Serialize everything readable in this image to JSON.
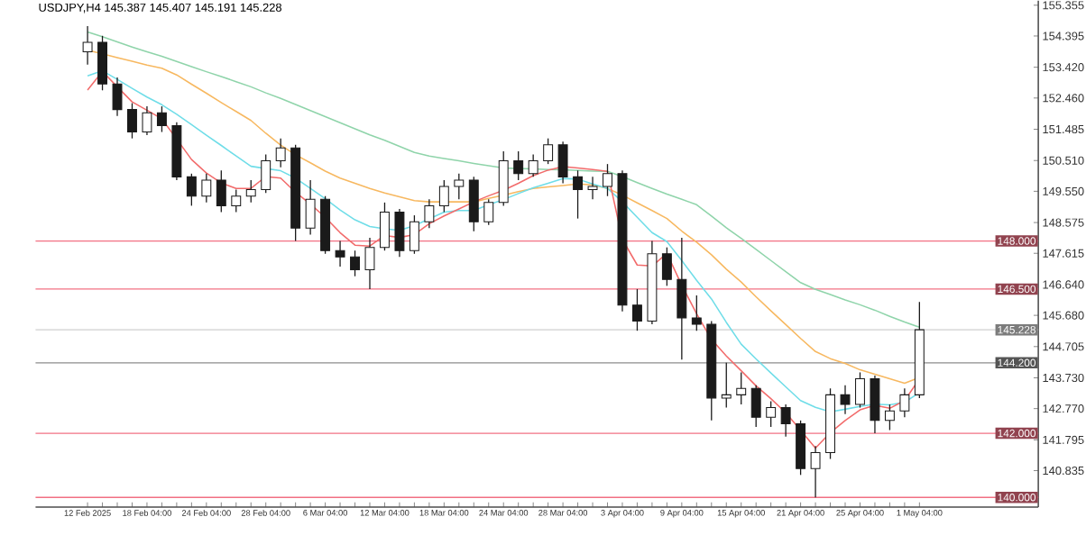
{
  "chart_data": {
    "type": "candlestick",
    "title": "USDJPY,H4 145.387 145.407 145.191 145.228",
    "color": "#1a1a1a",
    "categories": [
      "12 Feb 2025",
      null,
      null,
      null,
      "18 Feb 04:00",
      null,
      null,
      null,
      "24 Feb 04:00",
      null,
      null,
      null,
      "28 Feb 04:00",
      null,
      null,
      null,
      "6 Mar 04:00",
      null,
      null,
      null,
      "12 Mar 04:00",
      null,
      null,
      null,
      "18 Mar 04:00",
      null,
      null,
      null,
      "24 Mar 04:00",
      null,
      null,
      null,
      "28 Mar 04:00",
      null,
      null,
      null,
      "3 Apr 04:00",
      null,
      null,
      null,
      "9 Apr 04:00",
      null,
      null,
      null,
      "15 Apr 04:00",
      null,
      null,
      null,
      "21 Apr 04:00",
      null,
      null,
      null,
      "25 Apr 04:00",
      null,
      null,
      null,
      "1 May 04:00"
    ],
    "ohlc": [
      [
        153.9,
        154.7,
        153.5,
        154.2
      ],
      [
        154.2,
        154.4,
        152.7,
        152.9
      ],
      [
        152.9,
        153.1,
        151.9,
        152.1
      ],
      [
        152.1,
        152.3,
        151.2,
        151.4
      ],
      [
        151.4,
        152.2,
        151.3,
        152.0
      ],
      [
        152.0,
        152.2,
        151.4,
        151.6
      ],
      [
        151.6,
        151.7,
        149.9,
        150.0
      ],
      [
        150.0,
        150.1,
        149.1,
        149.4
      ],
      [
        149.4,
        150.1,
        149.2,
        149.9
      ],
      [
        149.9,
        150.2,
        148.9,
        149.1
      ],
      [
        149.1,
        149.6,
        148.9,
        149.4
      ],
      [
        149.4,
        149.9,
        149.2,
        149.6
      ],
      [
        149.6,
        150.7,
        149.5,
        150.5
      ],
      [
        150.5,
        151.2,
        150.3,
        150.9
      ],
      [
        150.9,
        151.0,
        148.0,
        148.4
      ],
      [
        148.4,
        149.9,
        148.2,
        149.3
      ],
      [
        149.3,
        149.4,
        147.6,
        147.7
      ],
      [
        147.7,
        148.0,
        147.2,
        147.5
      ],
      [
        147.5,
        147.7,
        146.9,
        147.1
      ],
      [
        147.1,
        148.1,
        146.5,
        147.8
      ],
      [
        147.8,
        149.2,
        147.7,
        148.9
      ],
      [
        148.9,
        149.0,
        147.5,
        147.7
      ],
      [
        147.7,
        148.8,
        147.6,
        148.6
      ],
      [
        148.6,
        149.3,
        148.4,
        149.1
      ],
      [
        149.1,
        149.9,
        148.9,
        149.7
      ],
      [
        149.7,
        150.1,
        149.3,
        149.9
      ],
      [
        149.9,
        150.0,
        148.3,
        148.6
      ],
      [
        148.6,
        149.3,
        148.5,
        149.2
      ],
      [
        149.2,
        150.8,
        149.1,
        150.5
      ],
      [
        150.5,
        150.8,
        149.9,
        150.1
      ],
      [
        150.1,
        150.7,
        150.0,
        150.5
      ],
      [
        150.5,
        151.2,
        150.4,
        151.0
      ],
      [
        151.0,
        151.1,
        149.8,
        150.0
      ],
      [
        150.0,
        150.2,
        148.7,
        149.6
      ],
      [
        149.6,
        150.0,
        149.3,
        149.7
      ],
      [
        149.7,
        150.4,
        149.4,
        150.1
      ],
      [
        150.1,
        150.2,
        145.8,
        146.0
      ],
      [
        146.0,
        146.5,
        145.2,
        145.5
      ],
      [
        145.5,
        148.0,
        145.4,
        147.6
      ],
      [
        147.6,
        147.8,
        146.6,
        146.8
      ],
      [
        146.8,
        148.1,
        144.3,
        145.6
      ],
      [
        145.6,
        146.3,
        145.2,
        145.4
      ],
      [
        145.4,
        145.5,
        142.4,
        143.1
      ],
      [
        143.1,
        144.2,
        142.8,
        143.2
      ],
      [
        143.2,
        143.9,
        142.9,
        143.4
      ],
      [
        143.4,
        143.5,
        142.2,
        142.5
      ],
      [
        142.5,
        143.0,
        142.2,
        142.8
      ],
      [
        142.8,
        142.9,
        141.9,
        142.3
      ],
      [
        142.3,
        142.4,
        140.7,
        140.9
      ],
      [
        140.9,
        141.6,
        140.0,
        141.4
      ],
      [
        141.4,
        143.4,
        141.2,
        143.2
      ],
      [
        143.2,
        143.5,
        142.6,
        142.9
      ],
      [
        142.9,
        143.9,
        142.8,
        143.7
      ],
      [
        143.7,
        143.8,
        142.0,
        142.4
      ],
      [
        142.4,
        142.9,
        142.1,
        142.7
      ],
      [
        142.7,
        143.4,
        142.5,
        143.2
      ],
      [
        143.2,
        146.1,
        143.1,
        145.23
      ]
    ],
    "series": [
      {
        "type": "line",
        "color": "#8fd4aa",
        "values": [
          154.52,
          154.37,
          154.21,
          154.05,
          153.9,
          153.76,
          153.6,
          153.44,
          153.28,
          153.13,
          152.97,
          152.81,
          152.62,
          152.45,
          152.26,
          152.07,
          151.88,
          151.69,
          151.5,
          151.31,
          151.14,
          150.95,
          150.76,
          150.65,
          150.57,
          150.5,
          150.42,
          150.35,
          150.28,
          150.26,
          150.25,
          150.23,
          150.22,
          150.2,
          150.18,
          150.17,
          150.01,
          149.82,
          149.64,
          149.46,
          149.3,
          149.13,
          148.78,
          148.41,
          148.08,
          147.74,
          147.39,
          147.04,
          146.7,
          146.49,
          146.33,
          146.16,
          146.01,
          145.84,
          145.65,
          145.47,
          145.31
        ]
      },
      {
        "type": "line",
        "color": "#f7b860",
        "values": [
          153.95,
          153.84,
          153.72,
          153.61,
          153.49,
          153.39,
          153.18,
          152.89,
          152.61,
          152.32,
          152.04,
          151.76,
          151.36,
          150.99,
          150.69,
          150.44,
          150.18,
          149.96,
          149.8,
          149.64,
          149.5,
          149.38,
          149.26,
          149.22,
          149.22,
          149.22,
          149.22,
          149.33,
          149.43,
          149.54,
          149.64,
          149.69,
          149.73,
          149.78,
          149.75,
          149.64,
          149.43,
          149.19,
          148.95,
          148.7,
          148.31,
          147.96,
          147.57,
          147.12,
          146.72,
          146.26,
          145.82,
          145.39,
          144.96,
          144.55,
          144.33,
          144.18,
          143.98,
          143.84,
          143.7,
          143.56,
          143.74
        ]
      },
      {
        "type": "line",
        "color": "#6fdde8",
        "values": [
          153.15,
          153.31,
          153.04,
          152.76,
          152.49,
          152.25,
          151.95,
          151.63,
          151.3,
          150.98,
          150.65,
          150.33,
          150.26,
          150.19,
          149.96,
          149.64,
          149.32,
          148.97,
          148.66,
          148.45,
          148.38,
          148.33,
          148.48,
          148.69,
          148.9,
          148.95,
          148.95,
          149.13,
          149.29,
          149.48,
          149.66,
          149.8,
          149.95,
          149.93,
          149.78,
          149.64,
          149.22,
          148.74,
          148.26,
          147.98,
          147.39,
          146.77,
          146.19,
          145.46,
          144.78,
          144.32,
          143.88,
          143.45,
          143.02,
          142.81,
          142.67,
          142.75,
          142.84,
          142.91,
          142.89,
          142.97,
          143.27
        ]
      },
      {
        "type": "line",
        "color": "#f26b6b",
        "values": [
          152.71,
          153.29,
          152.81,
          152.34,
          152.08,
          151.81,
          151.18,
          150.54,
          150.12,
          149.81,
          149.64,
          149.64,
          150.01,
          149.96,
          149.52,
          149.15,
          148.74,
          148.26,
          147.87,
          147.84,
          148.17,
          148.11,
          148.2,
          148.54,
          148.78,
          149.0,
          149.22,
          149.41,
          149.58,
          149.8,
          150.04,
          150.21,
          150.32,
          150.28,
          150.23,
          150.17,
          148.05,
          147.25,
          147.22,
          147.61,
          146.62,
          145.73,
          144.93,
          144.41,
          143.95,
          143.48,
          143.08,
          142.64,
          142.09,
          141.54,
          142.02,
          142.4,
          142.73,
          142.87,
          142.78,
          143.02,
          143.7
        ]
      }
    ],
    "ylim": [
      139.7,
      155.5
    ],
    "yticks": [
      140.835,
      141.795,
      {
        "value": 142.77,
        "label": "142.770"
      },
      {
        "value": 143.73,
        "label": "143.730"
      },
      144.705,
      {
        "value": 145.68,
        "label": "145.680"
      },
      {
        "value": 146.64,
        "label": "146.640"
      },
      147.615,
      148.575,
      {
        "value": 149.55,
        "label": "149.550"
      },
      {
        "value": 150.51,
        "label": "150.510"
      },
      151.485,
      {
        "value": 152.46,
        "label": "152.460"
      },
      {
        "value": 153.42,
        "label": "153.420"
      },
      154.395,
      155.355
    ],
    "ref_lines": [
      {
        "axis": "y",
        "value": 148.0,
        "label": "148.000",
        "color": "#f27083"
      },
      {
        "axis": "y",
        "value": 146.5,
        "label": "146.500",
        "color": "#f27083"
      },
      {
        "axis": "y",
        "value": 145.228,
        "label": "145.228",
        "color": "#cfcfcf"
      },
      {
        "axis": "y",
        "value": 144.2,
        "label": "144.200",
        "color": "#8c8c8c"
      },
      {
        "axis": "y",
        "value": 142.0,
        "label": "142.000",
        "color": "#f27083"
      },
      {
        "axis": "y",
        "value": 140.0,
        "label": "140.000",
        "color": "#f27083"
      }
    ],
    "grid": false
  }
}
